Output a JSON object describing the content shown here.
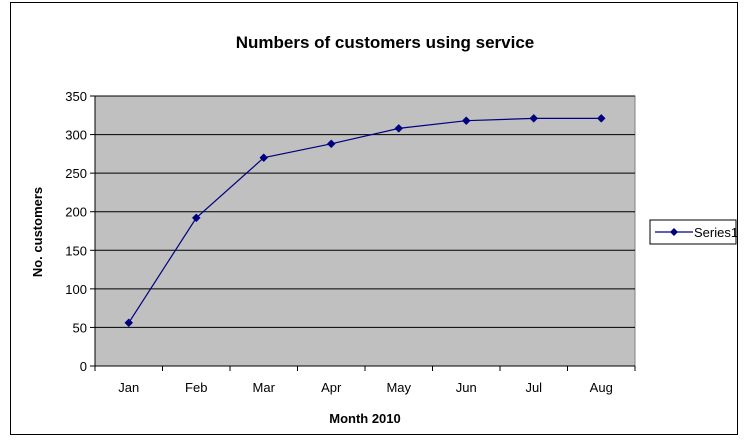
{
  "chart_data": {
    "type": "line",
    "title": "Numbers of customers using service",
    "xlabel": "Month 2010",
    "ylabel": "No. customers",
    "categories": [
      "Jan",
      "Feb",
      "Mar",
      "Apr",
      "May",
      "Jun",
      "Jul",
      "Aug"
    ],
    "series": [
      {
        "name": "Series1",
        "values": [
          56,
          192,
          270,
          288,
          308,
          318,
          321,
          321
        ],
        "color": "#000080"
      }
    ],
    "ylim": [
      0,
      350
    ],
    "yticks": [
      "0",
      "50",
      "100",
      "150",
      "200",
      "250",
      "300",
      "350"
    ],
    "grid": true,
    "plot_background": "#c0c0c0",
    "legend_position": "right",
    "marker": "diamond"
  }
}
